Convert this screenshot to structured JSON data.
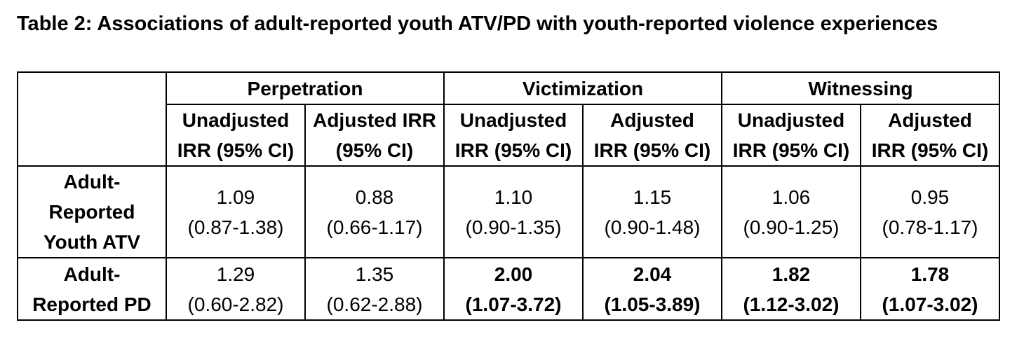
{
  "caption": "Table 2: Associations of adult-reported youth ATV/PD with youth-reported violence experiences",
  "groups": [
    "Perpetration",
    "Victimization",
    "Witnessing"
  ],
  "subheaders": [
    [
      "Unadjusted",
      "IRR (95% CI)"
    ],
    [
      "Adjusted IRR",
      "(95% CI)"
    ],
    [
      "Unadjusted",
      "IRR (95% CI)"
    ],
    [
      "Adjusted",
      "IRR (95% CI)"
    ],
    [
      "Unadjusted",
      "IRR (95% CI)"
    ],
    [
      "Adjusted",
      "IRR (95% CI)"
    ]
  ],
  "rows": [
    {
      "label": [
        "Adult-",
        "Reported",
        "Youth ATV"
      ],
      "cells": [
        {
          "value": "1.09",
          "ci": "(0.87-1.38)",
          "bold": false
        },
        {
          "value": "0.88",
          "ci": "(0.66-1.17)",
          "bold": false
        },
        {
          "value": "1.10",
          "ci": "(0.90-1.35)",
          "bold": false
        },
        {
          "value": "1.15",
          "ci": "(0.90-1.48)",
          "bold": false
        },
        {
          "value": "1.06",
          "ci": "(0.90-1.25)",
          "bold": false
        },
        {
          "value": "0.95",
          "ci": "(0.78-1.17)",
          "bold": false
        }
      ]
    },
    {
      "label": [
        "Adult-",
        "Reported PD"
      ],
      "cells": [
        {
          "value": "1.29",
          "ci": "(0.60-2.82)",
          "bold": false
        },
        {
          "value": "1.35",
          "ci": "(0.62-2.88)",
          "bold": false
        },
        {
          "value": "2.00",
          "ci": "(1.07-3.72)",
          "bold": true
        },
        {
          "value": "2.04",
          "ci": "(1.05-3.89)",
          "bold": true
        },
        {
          "value": "1.82",
          "ci": "(1.12-3.02)",
          "bold": true
        },
        {
          "value": "1.78",
          "ci": "(1.07-3.02)",
          "bold": true
        }
      ]
    }
  ]
}
